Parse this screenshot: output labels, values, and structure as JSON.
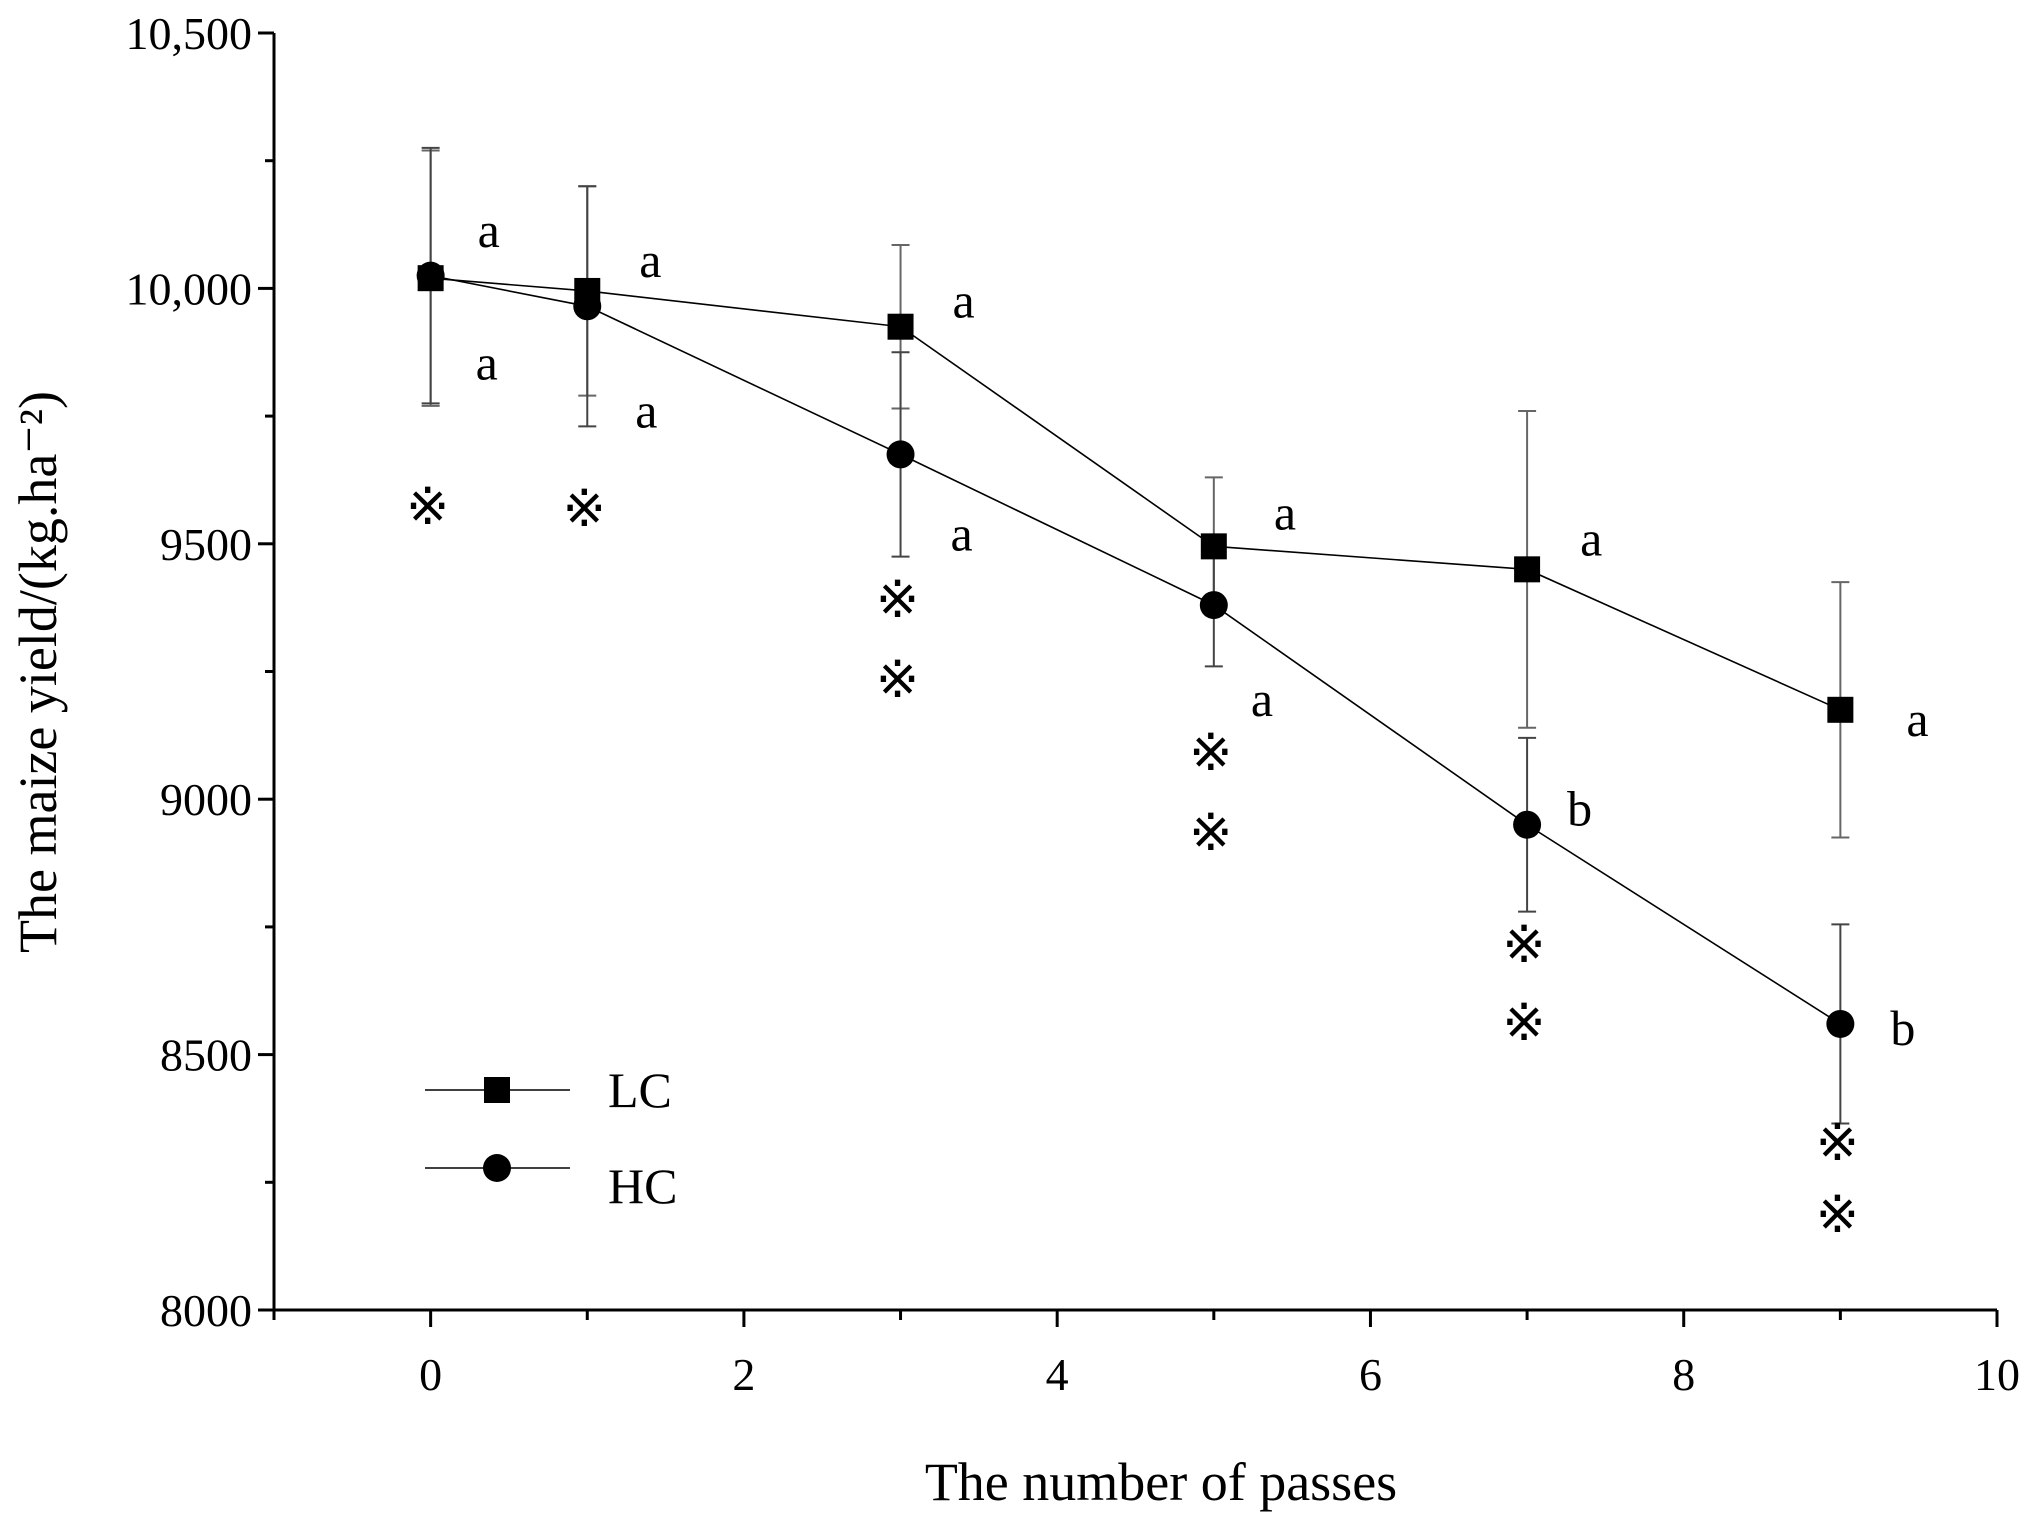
{
  "chart_data": {
    "type": "line",
    "title": "",
    "xlabel": "The number of passes",
    "ylabel": "The maize yield/(kg.ha⁻²)",
    "xlim": [
      -1,
      10
    ],
    "ylim": [
      8000,
      10500
    ],
    "x_ticks": [
      0,
      2,
      4,
      6,
      8,
      10
    ],
    "x_tick_labels": [
      "0",
      "2",
      "4",
      "6",
      "8",
      "10"
    ],
    "y_ticks": [
      8000,
      8500,
      9000,
      9500,
      10000,
      10500
    ],
    "y_tick_labels": [
      "8000",
      "8500",
      "9000",
      "9500",
      "10,000",
      "10,500"
    ],
    "grid": false,
    "legend_position": "bottom-left",
    "x": [
      0,
      1,
      3,
      5,
      7,
      9
    ],
    "series": [
      {
        "name": "LC",
        "marker": "square",
        "values": [
          10020,
          9995,
          9925,
          9495,
          9450,
          9175
        ],
        "errors": [
          250,
          205,
          160,
          135,
          310,
          250
        ],
        "letters": [
          "a",
          "a",
          "a",
          "a",
          "a",
          "a"
        ]
      },
      {
        "name": "HC",
        "marker": "circle",
        "values": [
          10025,
          9965,
          9675,
          9380,
          8950,
          8560
        ],
        "errors": [
          250,
          235,
          200,
          120,
          170,
          195
        ],
        "letters": [
          "a",
          "a",
          "a",
          "a",
          "b",
          "b"
        ]
      }
    ],
    "significance_marks": [
      {
        "x": 0,
        "symbol": "※",
        "count": 1
      },
      {
        "x": 1,
        "symbol": "※",
        "count": 1
      },
      {
        "x": 3,
        "symbol": "※",
        "count": 2
      },
      {
        "x": 5,
        "symbol": "※",
        "count": 2
      },
      {
        "x": 7,
        "symbol": "※",
        "count": 2
      },
      {
        "x": 9,
        "symbol": "※",
        "count": 2
      }
    ]
  }
}
